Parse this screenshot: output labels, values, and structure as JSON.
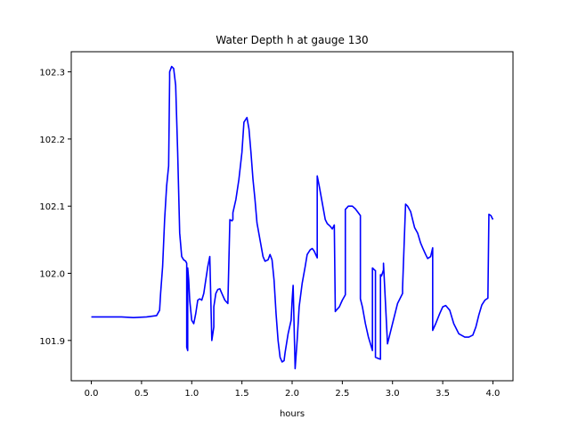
{
  "chart_data": {
    "type": "line",
    "title": "Water Depth h at gauge 130",
    "xlabel": "hours",
    "ylabel": "",
    "xlim": [
      -0.2,
      4.2
    ],
    "ylim": [
      101.84,
      102.33
    ],
    "xticks": [
      0.0,
      0.5,
      1.0,
      1.5,
      2.0,
      2.5,
      3.0,
      3.5,
      4.0
    ],
    "xtick_labels": [
      "0.0",
      "0.5",
      "1.0",
      "1.5",
      "2.0",
      "2.5",
      "3.0",
      "3.5",
      "4.0"
    ],
    "yticks": [
      101.9,
      102.0,
      102.1,
      102.2,
      102.3
    ],
    "ytick_labels": [
      "101.9",
      "102.0",
      "102.1",
      "102.2",
      "102.3"
    ],
    "grid": false,
    "series": [
      {
        "color": "#0000ff",
        "x": [
          0.0,
          0.3,
          0.42,
          0.55,
          0.65,
          0.68,
          0.69,
          0.71,
          0.73,
          0.75,
          0.77,
          0.78,
          0.78,
          0.8,
          0.82,
          0.84,
          0.86,
          0.88,
          0.9,
          0.92,
          0.94,
          0.95,
          0.95,
          0.96,
          0.96,
          0.97,
          0.98,
          1.0,
          1.02,
          1.04,
          1.06,
          1.08,
          1.1,
          1.12,
          1.14,
          1.16,
          1.18,
          1.2,
          1.22,
          1.22,
          1.24,
          1.26,
          1.28,
          1.3,
          1.33,
          1.36,
          1.38,
          1.4,
          1.41,
          1.41,
          1.44,
          1.47,
          1.5,
          1.52,
          1.55,
          1.57,
          1.59,
          1.61,
          1.63,
          1.65,
          1.68,
          1.71,
          1.73,
          1.76,
          1.78,
          1.8,
          1.82,
          1.84,
          1.86,
          1.88,
          1.9,
          1.92,
          1.93,
          1.96,
          1.99,
          2.0,
          2.01,
          2.03,
          2.05,
          2.07,
          2.1,
          2.13,
          2.15,
          2.18,
          2.2,
          2.22,
          2.25,
          2.25,
          2.27,
          2.3,
          2.33,
          2.35,
          2.38,
          2.4,
          2.42,
          2.43,
          2.43,
          2.44,
          2.47,
          2.5,
          2.53,
          2.53,
          2.56,
          2.6,
          2.63,
          2.66,
          2.68,
          2.68,
          2.7,
          2.73,
          2.76,
          2.78,
          2.8,
          2.8,
          2.82,
          2.83,
          2.83,
          2.86,
          2.88,
          2.88,
          2.89,
          2.91,
          2.91,
          2.95,
          3.0,
          3.05,
          3.1,
          3.1,
          3.13,
          3.15,
          3.18,
          3.2,
          3.22,
          3.25,
          3.28,
          3.3,
          3.33,
          3.35,
          3.38,
          3.4,
          3.4,
          3.43,
          3.47,
          3.5,
          3.53,
          3.57,
          3.61,
          3.66,
          3.72,
          3.76,
          3.8,
          3.83,
          3.86,
          3.89,
          3.92,
          3.94,
          3.95,
          3.96,
          3.97,
          3.98,
          4.0
        ],
        "y": [
          101.935,
          101.935,
          101.934,
          101.935,
          101.937,
          101.945,
          101.97,
          102.01,
          102.08,
          102.13,
          102.16,
          102.29,
          102.3,
          102.308,
          102.305,
          102.28,
          102.18,
          102.06,
          102.025,
          102.02,
          102.018,
          102.015,
          101.89,
          101.885,
          102.008,
          101.99,
          101.96,
          101.93,
          101.925,
          101.94,
          101.96,
          101.962,
          101.96,
          101.97,
          101.99,
          102.01,
          102.025,
          101.9,
          101.92,
          101.95,
          101.97,
          101.976,
          101.977,
          101.97,
          101.96,
          101.955,
          102.08,
          102.078,
          102.08,
          102.09,
          102.11,
          102.14,
          102.18,
          102.225,
          102.232,
          102.215,
          102.18,
          102.14,
          102.11,
          102.075,
          102.05,
          102.025,
          102.018,
          102.02,
          102.028,
          102.02,
          101.99,
          101.94,
          101.9,
          101.875,
          101.868,
          101.87,
          101.882,
          101.91,
          101.93,
          101.96,
          101.982,
          101.858,
          101.9,
          101.95,
          101.985,
          102.01,
          102.028,
          102.035,
          102.037,
          102.033,
          102.023,
          102.145,
          102.13,
          102.105,
          102.08,
          102.074,
          102.07,
          102.066,
          102.072,
          101.945,
          101.943,
          101.945,
          101.95,
          101.96,
          101.968,
          102.095,
          102.1,
          102.1,
          102.096,
          102.09,
          102.086,
          101.962,
          101.95,
          101.925,
          101.905,
          101.895,
          101.885,
          102.008,
          102.005,
          102.004,
          101.875,
          101.873,
          101.872,
          101.998,
          101.996,
          102.005,
          102.015,
          101.895,
          101.925,
          101.955,
          101.97,
          101.978,
          102.103,
          102.1,
          102.092,
          102.08,
          102.068,
          102.06,
          102.045,
          102.038,
          102.028,
          102.022,
          102.025,
          102.038,
          101.915,
          101.925,
          101.94,
          101.95,
          101.952,
          101.945,
          101.925,
          101.91,
          101.905,
          101.905,
          101.908,
          101.92,
          101.938,
          101.953,
          101.96,
          101.962,
          101.963,
          102.088,
          102.087,
          102.086,
          102.08
        ]
      }
    ]
  }
}
